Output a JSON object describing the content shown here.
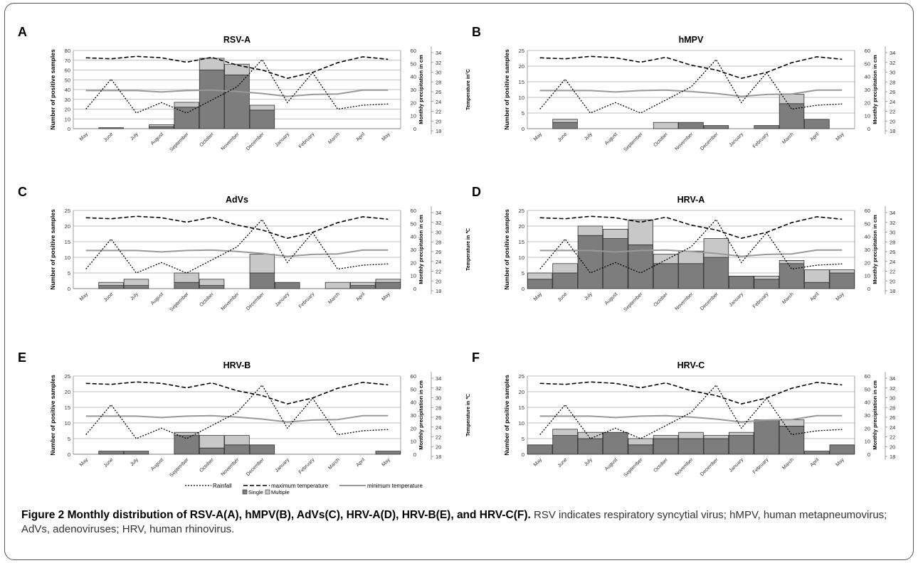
{
  "figure": {
    "caption_title": "Figure 2 Monthly distribution of RSV-A(A), hMPV(B), AdVs(C), HRV-A(D), HRV-B(E), and HRV-C(F).",
    "caption_text": "RSV indicates respiratory syncytial virus; hMPV, human metapneumovirus; AdVs, adenoviruses; HRV, human rhinovirus."
  },
  "legend": {
    "rainfall": "Rainfall",
    "max_temp": "maximum temperature",
    "min_temp": "minimum temperature",
    "single": "Single",
    "multiple": "Multiple"
  },
  "colors": {
    "single": "#7d7d7d",
    "multiple": "#c8c8c8",
    "bar_stroke": "#333333",
    "min_temp_line": "#999999",
    "line": "#000000",
    "grid": "#aaaaaa"
  },
  "chart_data": [
    {
      "panel": "A",
      "title": "RSV-A",
      "type": "bar",
      "ylabel": "Number of positive samples",
      "y2label": "Monthly precipitation in cm",
      "y3label": "Temperature in°C",
      "ylim": [
        0,
        80
      ],
      "yticks": [
        0,
        10,
        20,
        30,
        40,
        50,
        60,
        70,
        80
      ],
      "y2ticks": [
        0,
        10,
        20,
        30,
        40,
        50,
        60
      ],
      "y3ticks": [
        18,
        20,
        22,
        24,
        26,
        28,
        30,
        32,
        34
      ],
      "categories": [
        "May",
        "June",
        "July",
        "August",
        "September",
        "October",
        "November",
        "December",
        "January",
        "February",
        "March",
        "April",
        "May"
      ],
      "single": [
        0,
        1,
        0,
        2,
        22,
        60,
        55,
        19,
        0,
        0,
        0,
        0,
        0
      ],
      "multiple": [
        0,
        0,
        0,
        2,
        5,
        12,
        11,
        5,
        0,
        0,
        0,
        0,
        0
      ],
      "rainfall": [
        15,
        38,
        12,
        20,
        12,
        22,
        32,
        53,
        20,
        43,
        15,
        18,
        19
      ],
      "max_temp": [
        32.5,
        32.3,
        32.8,
        32.5,
        31.6,
        32.6,
        31.0,
        30.0,
        28.3,
        29.5,
        31.5,
        32.7,
        32.2
      ],
      "min_temp": [
        25.8,
        25.8,
        25.8,
        25.5,
        25.8,
        25.9,
        25.6,
        25.2,
        24.6,
        25.0,
        25.1,
        25.9,
        25.9
      ]
    },
    {
      "panel": "B",
      "title": "hMPV",
      "type": "bar",
      "ylabel": "Number of positive samples",
      "y2label": "Monthly precipitation in cm",
      "y3label": "Temperature in°C",
      "ylim": [
        0,
        25
      ],
      "yticks": [
        0,
        5,
        10,
        15,
        20,
        25
      ],
      "y2ticks": [
        0,
        10,
        20,
        30,
        40,
        50,
        60
      ],
      "y3ticks": [
        18,
        20,
        22,
        24,
        26,
        28,
        30,
        32,
        34
      ],
      "categories": [
        "May",
        "June",
        "July",
        "August",
        "September",
        "October",
        "November",
        "December",
        "January",
        "February",
        "March",
        "April",
        "May"
      ],
      "single": [
        0,
        2,
        0,
        0,
        0,
        0,
        2,
        1,
        0,
        1,
        8,
        3,
        0
      ],
      "multiple": [
        0,
        1,
        0,
        0,
        0,
        2,
        0,
        0,
        0,
        0,
        3,
        0,
        0
      ],
      "rainfall": [
        15,
        38,
        12,
        20,
        12,
        22,
        32,
        53,
        20,
        43,
        15,
        18,
        19
      ],
      "max_temp": [
        32.5,
        32.3,
        32.8,
        32.5,
        31.6,
        32.6,
        31.0,
        30.0,
        28.3,
        29.5,
        31.5,
        32.7,
        32.2
      ],
      "min_temp": [
        25.8,
        25.8,
        25.8,
        25.5,
        25.8,
        25.9,
        25.6,
        25.2,
        24.6,
        25.0,
        25.1,
        25.9,
        25.9
      ]
    },
    {
      "panel": "C",
      "title": "AdVs",
      "type": "bar",
      "ylabel": "Number of positive samples",
      "y2label": "Monthly precipitation in cm",
      "y3label": "Temperature in ℃",
      "ylim": [
        0,
        25
      ],
      "yticks": [
        0,
        5,
        10,
        15,
        20,
        25
      ],
      "y2ticks": [
        0,
        10,
        20,
        30,
        40,
        50,
        60
      ],
      "y3ticks": [
        18,
        20,
        22,
        24,
        26,
        28,
        30,
        32,
        34
      ],
      "categories": [
        "May",
        "June",
        "July",
        "August",
        "September",
        "October",
        "November",
        "December",
        "January",
        "February",
        "March",
        "April",
        "May"
      ],
      "single": [
        0,
        1,
        1,
        0,
        2,
        1,
        0,
        5,
        2,
        0,
        0,
        1,
        2
      ],
      "multiple": [
        0,
        1,
        2,
        0,
        3,
        2,
        0,
        6,
        0,
        0,
        2,
        1,
        1
      ],
      "rainfall": [
        15,
        38,
        12,
        20,
        12,
        22,
        32,
        53,
        20,
        43,
        15,
        18,
        19
      ],
      "max_temp": [
        32.5,
        32.3,
        32.8,
        32.5,
        31.6,
        32.6,
        31.0,
        30.0,
        28.3,
        29.5,
        31.5,
        32.7,
        32.2
      ],
      "min_temp": [
        25.8,
        25.8,
        25.8,
        25.5,
        25.8,
        25.9,
        25.6,
        25.2,
        24.6,
        25.0,
        25.1,
        25.9,
        25.9
      ]
    },
    {
      "panel": "D",
      "title": "HRV-A",
      "type": "bar",
      "ylabel": "Number of positive samples",
      "y2label": "Monthly precipitation in cm",
      "y3label": "Temperature in ℃",
      "ylim": [
        0,
        25
      ],
      "yticks": [
        0,
        5,
        10,
        15,
        20,
        25
      ],
      "y2ticks": [
        0,
        10,
        20,
        30,
        40,
        50,
        60
      ],
      "y3ticks": [
        18,
        20,
        22,
        24,
        26,
        28,
        30,
        32,
        34
      ],
      "categories": [
        "May",
        "June",
        "July",
        "August",
        "September",
        "October",
        "November",
        "December",
        "January",
        "February",
        "March",
        "April",
        "May"
      ],
      "single": [
        3,
        5,
        17,
        16,
        14,
        8,
        8,
        10,
        4,
        3,
        8,
        2,
        5
      ],
      "multiple": [
        2,
        3,
        3,
        3,
        8,
        3,
        4,
        6,
        0,
        1,
        1,
        4,
        1
      ],
      "rainfall": [
        15,
        38,
        12,
        20,
        12,
        22,
        32,
        53,
        20,
        43,
        15,
        18,
        19
      ],
      "max_temp": [
        32.5,
        32.3,
        32.8,
        32.5,
        31.6,
        32.6,
        31.0,
        30.0,
        28.3,
        29.5,
        31.5,
        32.7,
        32.2
      ],
      "min_temp": [
        25.8,
        25.8,
        25.8,
        25.5,
        25.8,
        25.9,
        25.6,
        25.2,
        24.6,
        25.0,
        25.1,
        25.9,
        25.9
      ]
    },
    {
      "panel": "E",
      "title": "HRV-B",
      "type": "bar",
      "ylabel": "Number of positive samples",
      "y2label": "Monthly precipitation in cm",
      "y3label": "Temperature in ℃",
      "ylim": [
        0,
        25
      ],
      "yticks": [
        0,
        5,
        10,
        15,
        20,
        25
      ],
      "y2ticks": [
        0,
        10,
        20,
        30,
        40,
        50,
        60
      ],
      "y3ticks": [
        18,
        20,
        22,
        24,
        26,
        28,
        30,
        32,
        34
      ],
      "categories": [
        "May",
        "June",
        "July",
        "August",
        "September",
        "October",
        "November",
        "December",
        "January",
        "February",
        "March",
        "April",
        "May"
      ],
      "single": [
        0,
        1,
        1,
        0,
        6,
        2,
        3,
        3,
        0,
        0,
        0,
        0,
        1
      ],
      "multiple": [
        0,
        0,
        0,
        0,
        1,
        4,
        3,
        0,
        0,
        0,
        0,
        0,
        0
      ],
      "rainfall": [
        15,
        38,
        12,
        20,
        12,
        22,
        32,
        53,
        20,
        43,
        15,
        18,
        19
      ],
      "max_temp": [
        32.5,
        32.3,
        32.8,
        32.5,
        31.6,
        32.6,
        31.0,
        30.0,
        28.3,
        29.5,
        31.5,
        32.7,
        32.2
      ],
      "min_temp": [
        25.8,
        25.8,
        25.8,
        25.5,
        25.8,
        25.9,
        25.6,
        25.2,
        24.6,
        25.0,
        25.1,
        25.9,
        25.9
      ]
    },
    {
      "panel": "F",
      "title": "HRV-C",
      "type": "bar",
      "ylabel": "Number of positive samples",
      "y2label": "Monthly precipitation in cm",
      "y3label": "Temperature in",
      "ylim": [
        0,
        25
      ],
      "yticks": [
        0,
        5,
        10,
        15,
        20,
        25
      ],
      "y2ticks": [
        0,
        10,
        20,
        30,
        40,
        50,
        60
      ],
      "y3ticks": [
        18,
        20,
        22,
        24,
        26,
        28,
        30,
        32,
        34
      ],
      "categories": [
        "May",
        "June",
        "July",
        "August",
        "September",
        "October",
        "November",
        "December",
        "January",
        "February",
        "March",
        "April",
        "May"
      ],
      "single": [
        3,
        6,
        5,
        7,
        3,
        5,
        5,
        5,
        6,
        11,
        9,
        1,
        3
      ],
      "multiple": [
        0,
        2,
        2,
        0,
        2,
        1,
        2,
        1,
        1,
        0,
        2,
        0,
        0
      ],
      "rainfall": [
        15,
        38,
        12,
        20,
        12,
        22,
        32,
        53,
        20,
        43,
        15,
        18,
        19
      ],
      "max_temp": [
        32.5,
        32.3,
        32.8,
        32.5,
        31.6,
        32.6,
        31.0,
        30.0,
        28.3,
        29.5,
        31.5,
        32.7,
        32.2
      ],
      "min_temp": [
        25.8,
        25.8,
        25.8,
        25.5,
        25.8,
        25.9,
        25.6,
        25.2,
        24.6,
        25.0,
        25.1,
        25.9,
        25.9
      ]
    }
  ]
}
